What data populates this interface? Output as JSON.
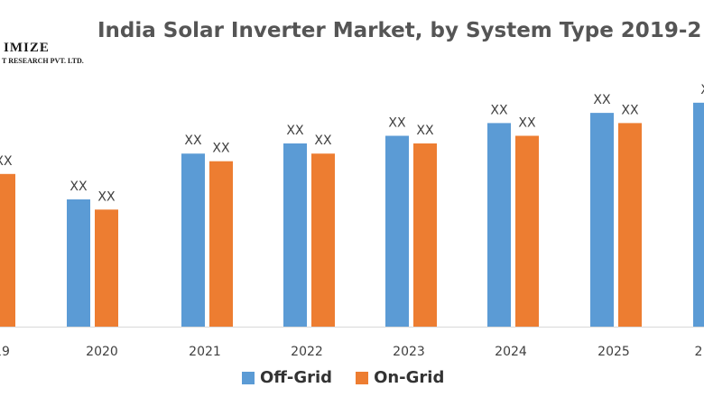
{
  "chart_data": {
    "type": "bar",
    "title": "India Solar Inverter Market, by System Type 2019-2",
    "categories": [
      "19",
      "2020",
      "2021",
      "2022",
      "2023",
      "2024",
      "2025",
      "2"
    ],
    "series": [
      {
        "name": "Off-Grid",
        "color": "#5b9bd5",
        "values": [
          null,
          50,
          68,
          72,
          75,
          80,
          84,
          88
        ],
        "labels": [
          "",
          "XX",
          "XX",
          "XX",
          "XX",
          "XX",
          "XX",
          "X"
        ]
      },
      {
        "name": "On-Grid",
        "color": "#ed7d31",
        "values": [
          60,
          46,
          65,
          68,
          72,
          75,
          80,
          null
        ],
        "labels": [
          "XX",
          "XX",
          "XX",
          "XX",
          "XX",
          "XX",
          "XX",
          ""
        ]
      }
    ],
    "ylim": [
      0,
      100
    ],
    "legend": "bottom-center",
    "grid": false
  },
  "logo": {
    "main": "IMIZE",
    "sub": "T RESEARCH PVT. LTD."
  }
}
